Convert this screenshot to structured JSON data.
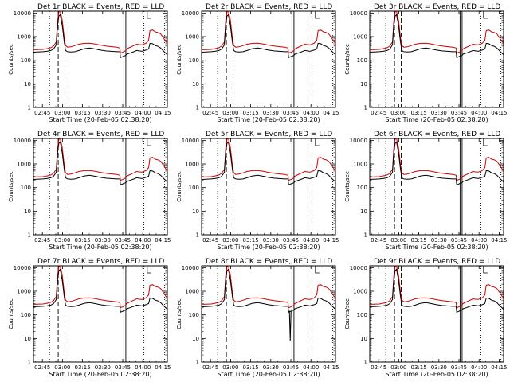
{
  "figure": {
    "background": "#ffffff",
    "event_color": "#000000",
    "lld_color": "#cc0000"
  },
  "chart_data": [
    {
      "type": "line",
      "title": "Det 1r BLACK = Events, RED = LLD",
      "detector": "1r"
    },
    {
      "type": "line",
      "title": "Det 2r BLACK = Events, RED = LLD",
      "detector": "2r"
    },
    {
      "type": "line",
      "title": "Det 3r BLACK = Events, RED = LLD",
      "detector": "3r"
    },
    {
      "type": "line",
      "title": "Det 4r BLACK = Events, RED = LLD",
      "detector": "4r"
    },
    {
      "type": "line",
      "title": "Det 5r BLACK = Events, RED = LLD",
      "detector": "5r"
    },
    {
      "type": "line",
      "title": "Det 6r BLACK = Events, RED = LLD",
      "detector": "6r"
    },
    {
      "type": "line",
      "title": "Det 7r BLACK = Events, RED = LLD",
      "detector": "7r"
    },
    {
      "type": "line",
      "title": "Det 8r BLACK = Events, RED = LLD",
      "detector": "8r",
      "dropout": true
    },
    {
      "type": "line",
      "title": "Det 9r BLACK = Events, RED = LLD",
      "detector": "9r"
    }
  ],
  "shared": {
    "xlabel": "Start Time (20-Feb-05 02:38:20)",
    "ylabel": "Counts/sec",
    "xticks": [
      "02:45",
      "03:00",
      "03:15",
      "03:30",
      "03:45",
      "04:00",
      "04:15"
    ],
    "xtick_minutes": [
      6.67,
      21.67,
      36.67,
      51.67,
      66.67,
      81.67,
      96.67
    ],
    "xlim_minutes": [
      0,
      100
    ],
    "yticks": [
      "1",
      "10",
      "100",
      "1000",
      "10000"
    ],
    "ylim": [
      1,
      12000
    ],
    "yscale": "log",
    "grid": false,
    "vlines": [
      {
        "t": 12.0,
        "style": "dotted"
      },
      {
        "t": 18.5,
        "style": "dashed"
      },
      {
        "t": 23.5,
        "style": "dashed"
      },
      {
        "t": 67.5,
        "style": "solid"
      },
      {
        "t": 69.0,
        "style": "solid"
      },
      {
        "t": 82.5,
        "style": "dotted"
      },
      {
        "t": 98.0,
        "style": "dotted"
      }
    ],
    "events_series": {
      "name": "Events",
      "t": [
        0,
        7,
        10,
        13,
        15,
        17,
        18,
        19,
        20,
        21.5,
        23,
        24,
        25.5,
        28,
        31,
        34,
        38,
        42,
        46,
        50,
        54,
        58,
        62,
        64.5,
        65,
        67.5,
        69,
        69.5,
        72,
        75,
        77,
        79,
        81,
        84,
        86,
        87,
        89,
        91,
        93,
        95,
        97,
        100
      ],
      "values": [
        220,
        230,
        240,
        260,
        300,
        450,
        2800,
        7500,
        8500,
        3000,
        600,
        260,
        230,
        225,
        230,
        260,
        310,
        330,
        300,
        270,
        250,
        240,
        230,
        230,
        130,
        150,
        160,
        180,
        200,
        230,
        260,
        250,
        240,
        270,
        300,
        520,
        500,
        420,
        390,
        330,
        250,
        170
      ]
    },
    "lld_series": {
      "name": "LLD",
      "t": [
        0,
        7,
        10,
        13,
        15,
        17,
        18,
        19,
        20,
        21.5,
        23,
        24,
        25.5,
        28,
        31,
        34,
        38,
        42,
        46,
        50,
        54,
        58,
        62,
        64.5,
        65,
        67.5,
        69,
        69.5,
        72,
        75,
        77,
        79,
        81,
        84,
        86,
        87,
        89,
        91,
        93,
        95,
        97,
        100
      ],
      "values": [
        280,
        290,
        310,
        340,
        400,
        600,
        4500,
        11000,
        12000,
        5000,
        900,
        420,
        360,
        370,
        420,
        480,
        520,
        530,
        490,
        440,
        400,
        380,
        360,
        330,
        200,
        230,
        260,
        300,
        350,
        420,
        480,
        460,
        450,
        520,
        700,
        1800,
        1900,
        1600,
        1500,
        1300,
        900,
        500
      ]
    }
  }
}
